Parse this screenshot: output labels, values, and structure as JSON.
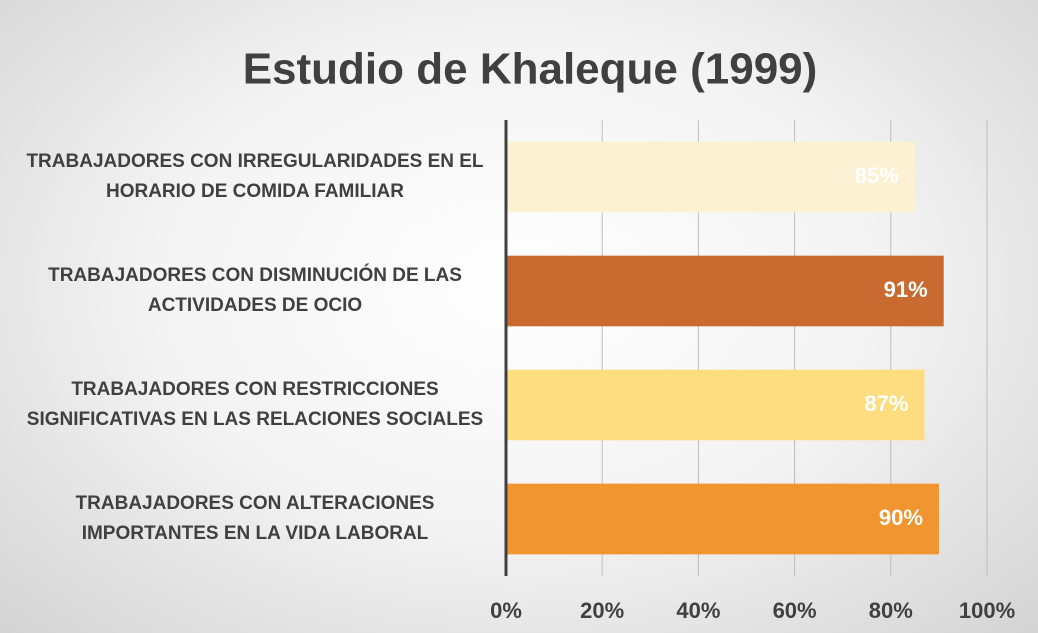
{
  "chart_data": {
    "type": "barh",
    "title": "Estudio de Khaleque (1999)",
    "categories": [
      "TRABAJADORES CON IRREGULARIDADES EN EL HORARIO DE COMIDA FAMILIAR",
      "TRABAJADORES CON DISMINUCIÓN DE LAS ACTIVIDADES DE OCIO",
      "TRABAJADORES CON RESTRICCIONES SIGNIFICATIVAS EN LAS RELACIONES SOCIALES",
      "TRABAJADORES CON ALTERACIONES IMPORTANTES EN LA VIDA LABORAL"
    ],
    "values": [
      85,
      91,
      87,
      90
    ],
    "value_labels": [
      "85%",
      "91%",
      "87%",
      "90%"
    ],
    "colors": [
      "#fdf1d3",
      "#c96a30",
      "#fedd80",
      "#f0952f"
    ],
    "xlim": [
      0,
      100
    ],
    "xticks": [
      {
        "value": 0,
        "label": "0%"
      },
      {
        "value": 20,
        "label": "20%"
      },
      {
        "value": 40,
        "label": "40%"
      },
      {
        "value": 60,
        "label": "60%"
      },
      {
        "value": 80,
        "label": "80%"
      },
      {
        "value": 100,
        "label": "100%"
      }
    ],
    "grid": true
  }
}
